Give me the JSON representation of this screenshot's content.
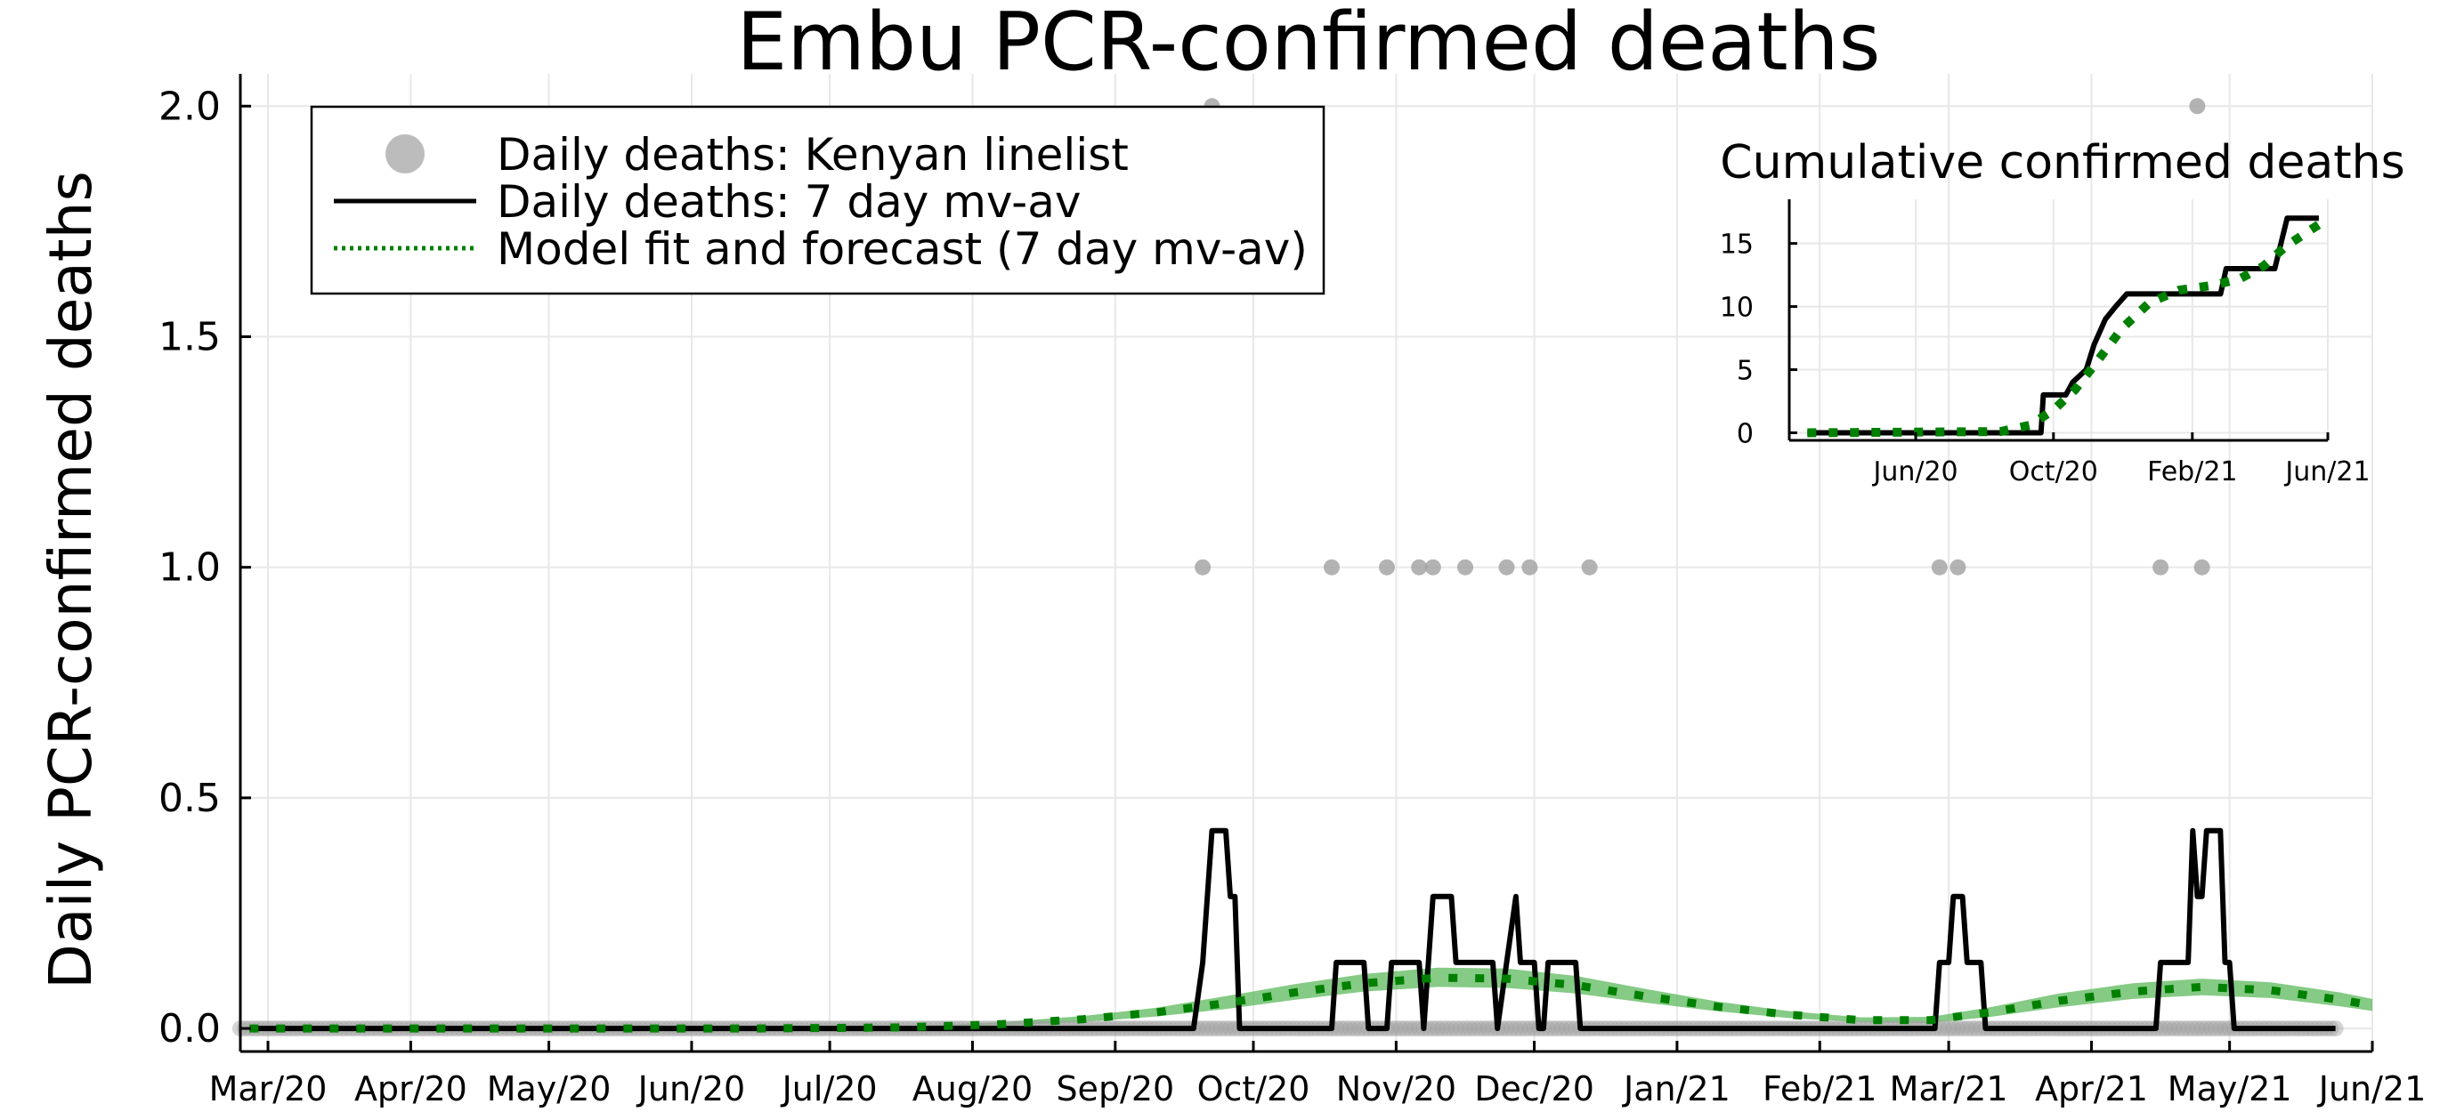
{
  "chart_data": [
    {
      "type": "line",
      "title": "Embu PCR-confirmed deaths",
      "xlabel": "",
      "ylabel": "Daily PCR-confirmed deaths",
      "x_axis_type": "date",
      "xlim": [
        "2020-02-24",
        "2021-06-01"
      ],
      "ylim": [
        -0.05,
        2.07
      ],
      "x_ticks": [
        {
          "date": "2020-03-01",
          "label": "Mar/20"
        },
        {
          "date": "2020-04-01",
          "label": "Apr/20"
        },
        {
          "date": "2020-05-01",
          "label": "May/20"
        },
        {
          "date": "2020-06-01",
          "label": "Jun/20"
        },
        {
          "date": "2020-07-01",
          "label": "Jul/20"
        },
        {
          "date": "2020-08-01",
          "label": "Aug/20"
        },
        {
          "date": "2020-09-01",
          "label": "Sep/20"
        },
        {
          "date": "2020-10-01",
          "label": "Oct/20"
        },
        {
          "date": "2020-11-01",
          "label": "Nov/20"
        },
        {
          "date": "2020-12-01",
          "label": "Dec/20"
        },
        {
          "date": "2021-01-01",
          "label": "Jan/21"
        },
        {
          "date": "2021-02-01",
          "label": "Feb/21"
        },
        {
          "date": "2021-03-01",
          "label": "Mar/21"
        },
        {
          "date": "2021-04-01",
          "label": "Apr/21"
        },
        {
          "date": "2021-05-01",
          "label": "May/21"
        },
        {
          "date": "2021-06-01",
          "label": "Jun/21"
        }
      ],
      "y_ticks": [
        {
          "value": 0,
          "label": "0.0"
        },
        {
          "value": 0.5,
          "label": "0.5"
        },
        {
          "value": 1,
          "label": "1.0"
        },
        {
          "value": 1.5,
          "label": "1.5"
        },
        {
          "value": 2,
          "label": "2.0"
        }
      ],
      "grid": true,
      "legend": {
        "placement": "top-left",
        "entries": [
          {
            "label": "Daily deaths: Kenyan linelist",
            "style": "marker",
            "color": "#a0a0a0"
          },
          {
            "label": "Daily deaths: 7 day mv-av",
            "style": "solid",
            "color": "#000000"
          },
          {
            "label": "Model fit and forecast (7 day mv-av)",
            "style": "dotted",
            "color": "#008000"
          }
        ]
      },
      "series": [
        {
          "name": "Daily deaths: Kenyan linelist",
          "kind": "scatter",
          "color": "#a0a0a0",
          "points": [
            [
              "2020-09-20",
              1
            ],
            [
              "2020-09-22",
              2
            ],
            [
              "2020-10-18",
              1
            ],
            [
              "2020-10-30",
              1
            ],
            [
              "2020-11-06",
              1
            ],
            [
              "2020-11-09",
              1
            ],
            [
              "2020-11-16",
              1
            ],
            [
              "2020-11-25",
              1
            ],
            [
              "2020-11-30",
              1
            ],
            [
              "2020-12-13",
              1
            ],
            [
              "2021-02-27",
              1
            ],
            [
              "2021-03-03",
              1
            ],
            [
              "2021-04-16",
              1
            ],
            [
              "2021-04-24",
              2
            ],
            [
              "2021-04-25",
              1
            ]
          ],
          "zero_range": [
            "2020-02-24",
            "2021-05-24"
          ]
        },
        {
          "name": "Daily deaths: 7 day mv-av",
          "kind": "line",
          "color": "#000000",
          "steps": [
            [
              "2020-02-26",
              0
            ],
            [
              "2020-09-18",
              0
            ],
            [
              "2020-09-20",
              0.143
            ],
            [
              "2020-09-22",
              0.429
            ],
            [
              "2020-09-25",
              0.429
            ],
            [
              "2020-09-26",
              0.286
            ],
            [
              "2020-09-27",
              0.286
            ],
            [
              "2020-09-28",
              0.0
            ],
            [
              "2020-10-18",
              0
            ],
            [
              "2020-10-19",
              0.143
            ],
            [
              "2020-10-25",
              0.143
            ],
            [
              "2020-10-26",
              0
            ],
            [
              "2020-10-30",
              0
            ],
            [
              "2020-10-31",
              0.143
            ],
            [
              "2020-11-06",
              0.143
            ],
            [
              "2020-11-07",
              0.0
            ],
            [
              "2020-11-08",
              0.143
            ],
            [
              "2020-11-09",
              0.286
            ],
            [
              "2020-11-13",
              0.286
            ],
            [
              "2020-11-14",
              0.143
            ],
            [
              "2020-11-22",
              0.143
            ],
            [
              "2020-11-23",
              0
            ],
            [
              "2020-11-25",
              0.143
            ],
            [
              "2020-11-27",
              0.286
            ],
            [
              "2020-11-28",
              0.143
            ],
            [
              "2020-12-01",
              0.143
            ],
            [
              "2020-12-02",
              0
            ],
            [
              "2020-12-03",
              0
            ],
            [
              "2020-12-04",
              0.143
            ],
            [
              "2020-12-10",
              0.143
            ],
            [
              "2020-12-11",
              0
            ],
            [
              "2021-02-26",
              0
            ],
            [
              "2021-02-27",
              0.143
            ],
            [
              "2021-03-01",
              0.143
            ],
            [
              "2021-03-02",
              0.286
            ],
            [
              "2021-03-04",
              0.286
            ],
            [
              "2021-03-05",
              0.143
            ],
            [
              "2021-03-08",
              0.143
            ],
            [
              "2021-03-09",
              0
            ],
            [
              "2021-04-15",
              0
            ],
            [
              "2021-04-16",
              0.143
            ],
            [
              "2021-04-22",
              0.143
            ],
            [
              "2021-04-23",
              0.429
            ],
            [
              "2021-04-24",
              0.286
            ],
            [
              "2021-04-25",
              0.286
            ],
            [
              "2021-04-26",
              0.429
            ],
            [
              "2021-04-29",
              0.429
            ],
            [
              "2021-04-30",
              0.143
            ],
            [
              "2021-05-01",
              0.143
            ],
            [
              "2021-05-02",
              0
            ],
            [
              "2021-05-24",
              0
            ]
          ]
        },
        {
          "name": "Model fit and forecast (7 day mv-av)",
          "kind": "line",
          "style": "dotted",
          "color": "#008000",
          "band_color": "#5cb85c",
          "points": [
            [
              "2020-02-26",
              0
            ],
            [
              "2020-06-15",
              0
            ],
            [
              "2020-07-15",
              0.002
            ],
            [
              "2020-08-05",
              0.008
            ],
            [
              "2020-08-25",
              0.02
            ],
            [
              "2020-09-10",
              0.035
            ],
            [
              "2020-09-25",
              0.055
            ],
            [
              "2020-10-10",
              0.078
            ],
            [
              "2020-10-25",
              0.098
            ],
            [
              "2020-11-10",
              0.11
            ],
            [
              "2020-11-25",
              0.108
            ],
            [
              "2020-12-10",
              0.094
            ],
            [
              "2020-12-25",
              0.07
            ],
            [
              "2021-01-10",
              0.047
            ],
            [
              "2021-01-25",
              0.03
            ],
            [
              "2021-02-10",
              0.018
            ],
            [
              "2021-02-25",
              0.018
            ],
            [
              "2021-03-10",
              0.035
            ],
            [
              "2021-03-25",
              0.06
            ],
            [
              "2021-04-10",
              0.08
            ],
            [
              "2021-04-25",
              0.09
            ],
            [
              "2021-05-10",
              0.083
            ],
            [
              "2021-05-25",
              0.062
            ],
            [
              "2021-06-01",
              0.05
            ]
          ],
          "band_lower": [
            0,
            0,
            0.001,
            0.005,
            0.014,
            0.026,
            0.042,
            0.062,
            0.08,
            0.09,
            0.088,
            0.076,
            0.056,
            0.037,
            0.023,
            0.013,
            0.012,
            0.025,
            0.046,
            0.064,
            0.072,
            0.066,
            0.048,
            0.038
          ],
          "band_upper": [
            0,
            0,
            0.004,
            0.012,
            0.027,
            0.045,
            0.07,
            0.096,
            0.118,
            0.132,
            0.13,
            0.114,
            0.086,
            0.058,
            0.038,
            0.024,
            0.025,
            0.046,
            0.076,
            0.098,
            0.108,
            0.1,
            0.078,
            0.064
          ]
        }
      ]
    },
    {
      "type": "line",
      "title": "Cumulative confirmed deaths",
      "xlabel": "",
      "ylabel": "",
      "x_axis_type": "date",
      "xlim": [
        "2020-02-10",
        "2021-06-01"
      ],
      "ylim": [
        -0.6,
        18.5
      ],
      "x_ticks": [
        {
          "date": "2020-06-01",
          "label": "Jun/20"
        },
        {
          "date": "2020-10-01",
          "label": "Oct/20"
        },
        {
          "date": "2021-02-01",
          "label": "Feb/21"
        },
        {
          "date": "2021-06-01",
          "label": "Jun/21"
        }
      ],
      "y_ticks": [
        {
          "value": 0,
          "label": "0"
        },
        {
          "value": 5,
          "label": "5"
        },
        {
          "value": 10,
          "label": "10"
        },
        {
          "value": 15,
          "label": "15"
        }
      ],
      "grid": true,
      "series": [
        {
          "kind": "line",
          "color": "#000000",
          "steps": [
            [
              "2020-02-26",
              0
            ],
            [
              "2020-09-20",
              0
            ],
            [
              "2020-09-22",
              3
            ],
            [
              "2020-10-12",
              3
            ],
            [
              "2020-10-18",
              4
            ],
            [
              "2020-10-30",
              5
            ],
            [
              "2020-11-06",
              7
            ],
            [
              "2020-11-16",
              9
            ],
            [
              "2020-11-25",
              10
            ],
            [
              "2020-12-05",
              11
            ],
            [
              "2021-02-26",
              11
            ],
            [
              "2021-03-03",
              13
            ],
            [
              "2021-04-15",
              13
            ],
            [
              "2021-04-26",
              17
            ],
            [
              "2021-05-24",
              17
            ]
          ]
        },
        {
          "kind": "line",
          "style": "dotted",
          "color": "#008000",
          "points": [
            [
              "2020-02-26",
              0
            ],
            [
              "2020-08-15",
              0.1
            ],
            [
              "2020-09-10",
              0.6
            ],
            [
              "2020-10-01",
              1.8
            ],
            [
              "2020-10-20",
              3.4
            ],
            [
              "2020-11-10",
              5.8
            ],
            [
              "2020-12-01",
              8.3
            ],
            [
              "2020-12-25",
              10.3
            ],
            [
              "2021-01-20",
              11.3
            ],
            [
              "2021-02-20",
              11.7
            ],
            [
              "2021-03-15",
              12.2
            ],
            [
              "2021-04-05",
              13.2
            ],
            [
              "2021-04-25",
              14.8
            ],
            [
              "2021-05-24",
              16.5
            ]
          ]
        }
      ]
    }
  ]
}
